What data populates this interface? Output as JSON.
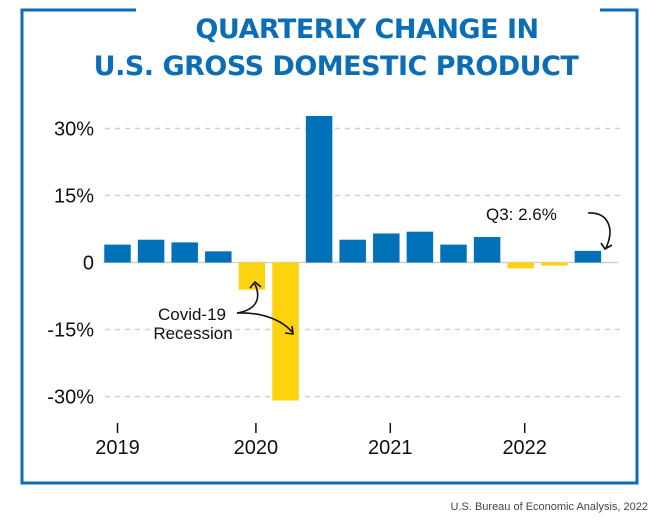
{
  "chart_data": {
    "type": "bar",
    "title": "QUARTERLY CHANGE IN U.S. GROSS DOMESTIC PRODUCT",
    "title_lines": [
      "QUARTERLY CHANGE IN",
      "U.S. GROSS DOMESTIC PRODUCT"
    ],
    "categories": [
      "2019 Q1",
      "2019 Q2",
      "2019 Q3",
      "2019 Q4",
      "2020 Q1",
      "2020 Q2",
      "2020 Q3",
      "2020 Q4",
      "2021 Q1",
      "2021 Q2",
      "2021 Q3",
      "2021 Q4",
      "2022 Q1",
      "2022 Q2",
      "2022 Q3"
    ],
    "values": [
      4.0,
      5.1,
      4.5,
      2.5,
      -6.1,
      -30.9,
      32.8,
      5.1,
      6.5,
      6.9,
      4.0,
      5.7,
      -1.3,
      -0.7,
      2.6
    ],
    "ylim": [
      -33,
      34
    ],
    "yticks": [
      30,
      15,
      0,
      -15,
      -30
    ],
    "ytick_labels": [
      "30%",
      "15%",
      "0",
      "-15%",
      "-30%"
    ],
    "xtick_labels": [
      "2019",
      "2020",
      "2021",
      "2022"
    ],
    "xlabel": "",
    "ylabel": "",
    "grid": true,
    "colors": {
      "positive": "#0070b8",
      "negative": "#fdd20e",
      "frame": "#0a6db5",
      "grid": "#d0d0d0"
    },
    "annotations": [
      {
        "text_lines": [
          "Covid-19",
          "Recession"
        ],
        "points_to": [
          "2020 Q1",
          "2020 Q2"
        ]
      },
      {
        "text": "Q3: 2.6%",
        "points_to": [
          "2022 Q3"
        ]
      }
    ],
    "source": "U.S. Bureau of Economic Analysis, 2022"
  }
}
